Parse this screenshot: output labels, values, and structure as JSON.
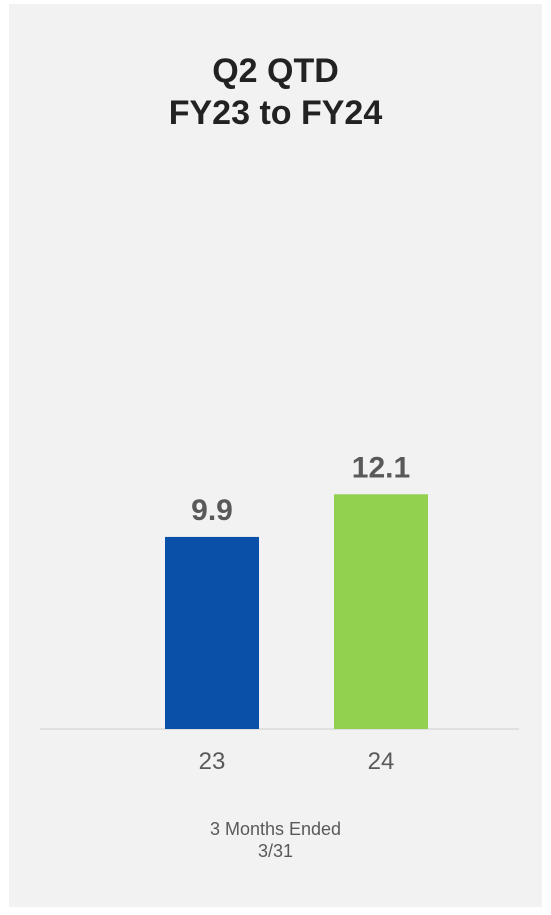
{
  "chart_data": {
    "type": "bar",
    "title_lines": [
      "Q2 QTD",
      "FY23 to FY24"
    ],
    "categories": [
      "23",
      "24"
    ],
    "values": [
      9.9,
      12.1
    ],
    "data_labels": [
      "9.9",
      "12.1"
    ],
    "colors": [
      "#0a4fa8",
      "#92d050"
    ],
    "xlabel_lines": [
      "3 Months Ended",
      "3/31"
    ],
    "ylabel": "",
    "ylim": [
      0,
      25
    ],
    "grid": false,
    "legend": "none"
  }
}
